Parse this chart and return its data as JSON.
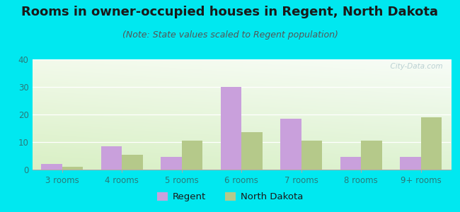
{
  "title": "Rooms in owner-occupied houses in Regent, North Dakota",
  "subtitle": "(Note: State values scaled to Regent population)",
  "categories": [
    "3 rooms",
    "4 rooms",
    "5 rooms",
    "6 rooms",
    "7 rooms",
    "8 rooms",
    "9+ rooms"
  ],
  "regent_values": [
    2,
    8.5,
    4.5,
    30,
    18.5,
    4.5,
    4.5
  ],
  "nd_values": [
    1,
    5.5,
    10.5,
    13.5,
    10.5,
    10.5,
    19
  ],
  "regent_color": "#c9a0dc",
  "nd_color": "#b5c98a",
  "background_outer": "#00e8f0",
  "ylim": [
    0,
    40
  ],
  "yticks": [
    0,
    10,
    20,
    30,
    40
  ],
  "bar_width": 0.35,
  "title_fontsize": 13,
  "subtitle_fontsize": 9,
  "legend_labels": [
    "Regent",
    "North Dakota"
  ],
  "watermark": "  City-Data.com",
  "tick_color": "#2a7a7a",
  "label_color": "#1a1a1a",
  "subtitle_color": "#555555",
  "grid_color": "#dddddd"
}
